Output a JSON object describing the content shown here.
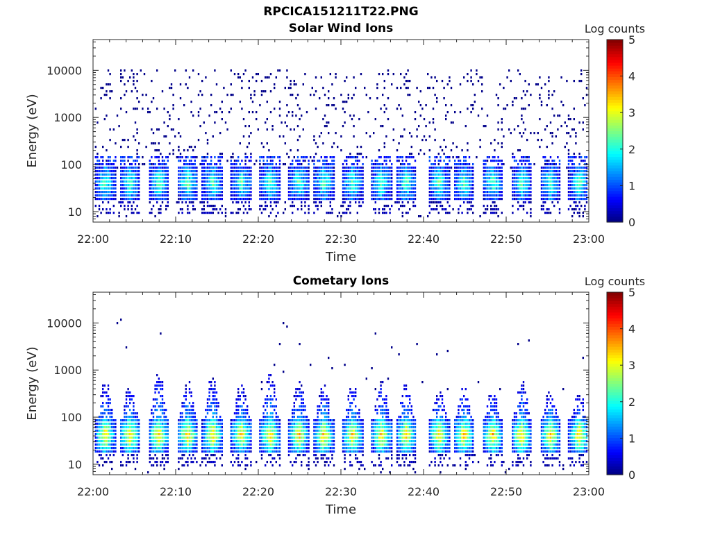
{
  "figure": {
    "title": "RPCICA151211T22.PNG"
  },
  "chart_data": [
    {
      "type": "heatmap",
      "title": "Solar Wind Ions",
      "xlabel": "Time",
      "ylabel": "Energy (eV)",
      "x_ticks": [
        "22:00",
        "22:10",
        "22:20",
        "22:30",
        "22:40",
        "22:50",
        "23:00"
      ],
      "x_range": [
        "22:00",
        "23:00"
      ],
      "y_scale": "log",
      "y_ticks": [
        10,
        100,
        1000,
        10000
      ],
      "y_range": [
        6,
        45000
      ],
      "colorbar": {
        "label": "Log counts",
        "ticks": [
          0,
          1,
          2,
          3,
          4,
          5
        ],
        "range": [
          0,
          5
        ],
        "colormap": "jet"
      },
      "pulse_times_min": [
        1.5,
        4.5,
        8,
        11.5,
        14.5,
        18,
        21.5,
        25,
        28,
        31.5,
        35,
        38,
        42,
        45,
        48.5,
        52,
        55.5,
        59
      ],
      "core_energy_ev": 40,
      "core_peak_log_counts": 2.2,
      "background": "sparse single counts (log 0) spanning 100–10000 eV"
    },
    {
      "type": "heatmap",
      "title": "Cometary Ions",
      "xlabel": "Time",
      "ylabel": "Energy (eV)",
      "x_ticks": [
        "22:00",
        "22:10",
        "22:20",
        "22:30",
        "22:40",
        "22:50",
        "23:00"
      ],
      "x_range": [
        "22:00",
        "23:00"
      ],
      "y_scale": "log",
      "y_ticks": [
        10,
        100,
        1000,
        10000
      ],
      "y_range": [
        6,
        45000
      ],
      "colorbar": {
        "label": "Log counts",
        "ticks": [
          0,
          1,
          2,
          3,
          4,
          5
        ],
        "range": [
          0,
          5
        ],
        "colormap": "jet"
      },
      "pulse_times_min": [
        1.5,
        4.5,
        8,
        11.5,
        14.5,
        18,
        21.5,
        25,
        28,
        31.5,
        35,
        38,
        42,
        45,
        48.5,
        52,
        55.5,
        59
      ],
      "core_energy_ev": 40,
      "core_peak_log_counts": 3.4,
      "plume_top_energy_ev": [
        500,
        450,
        800,
        550,
        650,
        500,
        800,
        550,
        500,
        450,
        550,
        500,
        350,
        400,
        350,
        600,
        350,
        300
      ],
      "background": "sparse single counts (log 0)"
    }
  ]
}
